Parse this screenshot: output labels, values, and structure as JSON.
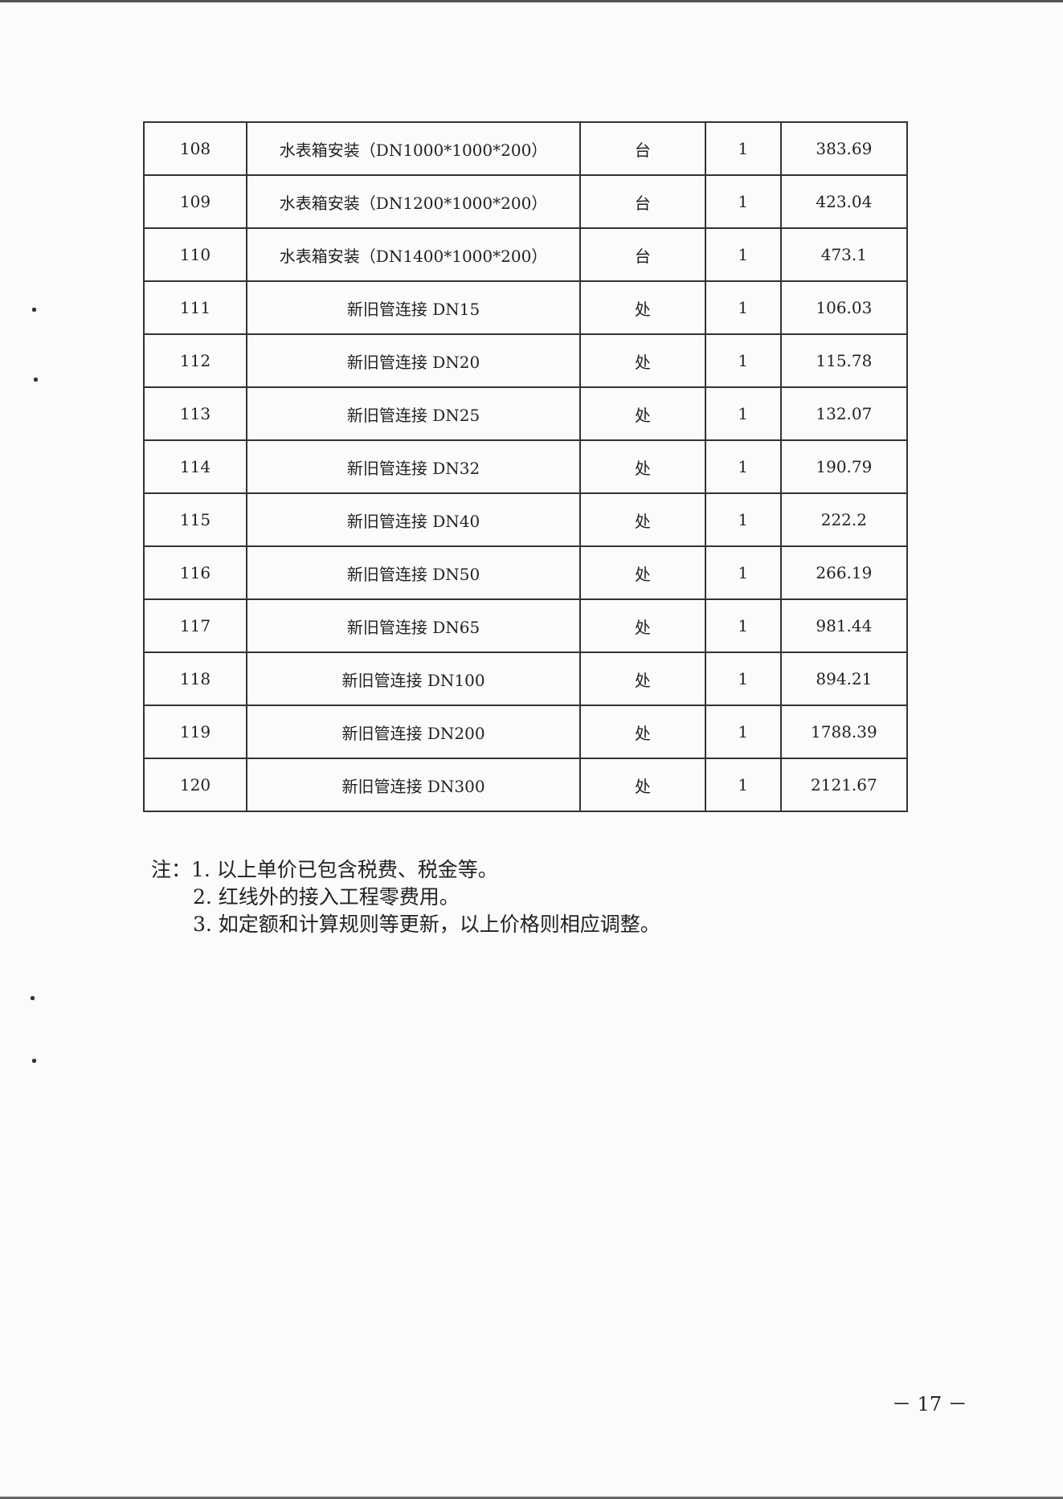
{
  "table": {
    "rows": [
      [
        "108",
        "水表箱安装（DN1000*1000*200）",
        "台",
        "1",
        "383.69"
      ],
      [
        "109",
        "水表箱安装（DN1200*1000*200）",
        "台",
        "1",
        "423.04"
      ],
      [
        "110",
        "水表箱安装（DN1400*1000*200）",
        "台",
        "1",
        "473.1"
      ],
      [
        "111",
        "新旧管连接 DN15",
        "处",
        "1",
        "106.03"
      ],
      [
        "112",
        "新旧管连接 DN20",
        "处",
        "1",
        "115.78"
      ],
      [
        "113",
        "新旧管连接 DN25",
        "处",
        "1",
        "132.07"
      ],
      [
        "114",
        "新旧管连接 DN32",
        "处",
        "1",
        "190.79"
      ],
      [
        "115",
        "新旧管连接 DN40",
        "处",
        "1",
        "222.2"
      ],
      [
        "116",
        "新旧管连接 DN50",
        "处",
        "1",
        "266.19"
      ],
      [
        "117",
        "新旧管连接 DN65",
        "处",
        "1",
        "981.44"
      ],
      [
        "118",
        "新旧管连接 DN100",
        "处",
        "1",
        "894.21"
      ],
      [
        "119",
        "新旧管连接 DN200",
        "处",
        "1",
        "1788.39"
      ],
      [
        "120",
        "新旧管连接 DN300",
        "处",
        "1",
        "2121.67"
      ]
    ]
  },
  "notes": {
    "line1": "注：1. 以上单价已包含税费、税金等。",
    "line2": "2. 红线外的接入工程零费用。",
    "line3": "3. 如定额和计算规则等更新，以上价格则相应调整。"
  },
  "page_number": "－ 17 －"
}
